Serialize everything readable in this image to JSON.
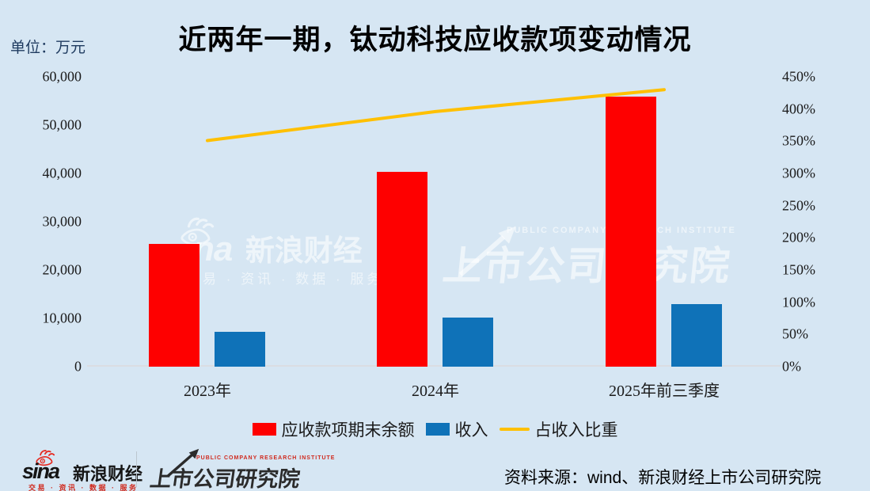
{
  "title": "近两年一期，钛动科技应收款项变动情况",
  "unit_label": "单位：万元",
  "chart_data": {
    "type": "bar",
    "title": "近两年一期，钛动科技应收款项变动情况",
    "unit": "单位：万元",
    "categories": [
      "2023年",
      "2024年",
      "2025年前三季度"
    ],
    "series": [
      {
        "name": "应收款项期末余额",
        "type": "bar",
        "axis": "left",
        "color": "#fe0000",
        "values": [
          25400,
          40300,
          55900
        ]
      },
      {
        "name": "收入",
        "type": "bar",
        "axis": "left",
        "color": "#0f72b8",
        "values": [
          7200,
          10200,
          13000
        ]
      },
      {
        "name": "占收入比重",
        "type": "line",
        "axis": "right",
        "color": "#ffc000",
        "values_percent": [
          351,
          396,
          430
        ]
      }
    ],
    "left_axis": {
      "min": 0,
      "max": 60000,
      "ticks": [
        "60,000",
        "50,000",
        "40,000",
        "30,000",
        "20,000",
        "10,000",
        "0"
      ]
    },
    "right_axis": {
      "min": 0,
      "max": 450,
      "ticks": [
        "450%",
        "400%",
        "350%",
        "300%",
        "250%",
        "200%",
        "150%",
        "100%",
        "50%",
        "0%"
      ]
    },
    "grid": false,
    "legend_position": "bottom"
  },
  "legend": {
    "items": [
      {
        "label": "应收款项期末余额",
        "color": "#fe0000",
        "type": "rect"
      },
      {
        "label": "收入",
        "color": "#0f72b8",
        "type": "rect"
      },
      {
        "label": "占收入比重",
        "color": "#ffc000",
        "type": "line"
      }
    ]
  },
  "watermark": {
    "sina_latin": "na",
    "sina_name": "新浪财经",
    "sina_tagline": "交易 · 资讯 · 数据 · 服务",
    "institute_en": "PUBLIC COMPANY RESEARCH INSTITUTE",
    "institute_name": "上市公司研究院"
  },
  "footer": {
    "sina_latin": "sina",
    "sina_name": "新浪财经",
    "sina_tagline": "交易 · 资讯 · 数据 · 服务",
    "institute_en": "PUBLIC COMPANY RESEARCH INSTITUTE",
    "institute_name": "上市公司研究院",
    "source": "资料来源：wind、新浪财经上市公司研究院"
  },
  "colors": {
    "background": "#d6e6f3",
    "axis_line": "#dadde2",
    "text": "#1a1a1a"
  }
}
